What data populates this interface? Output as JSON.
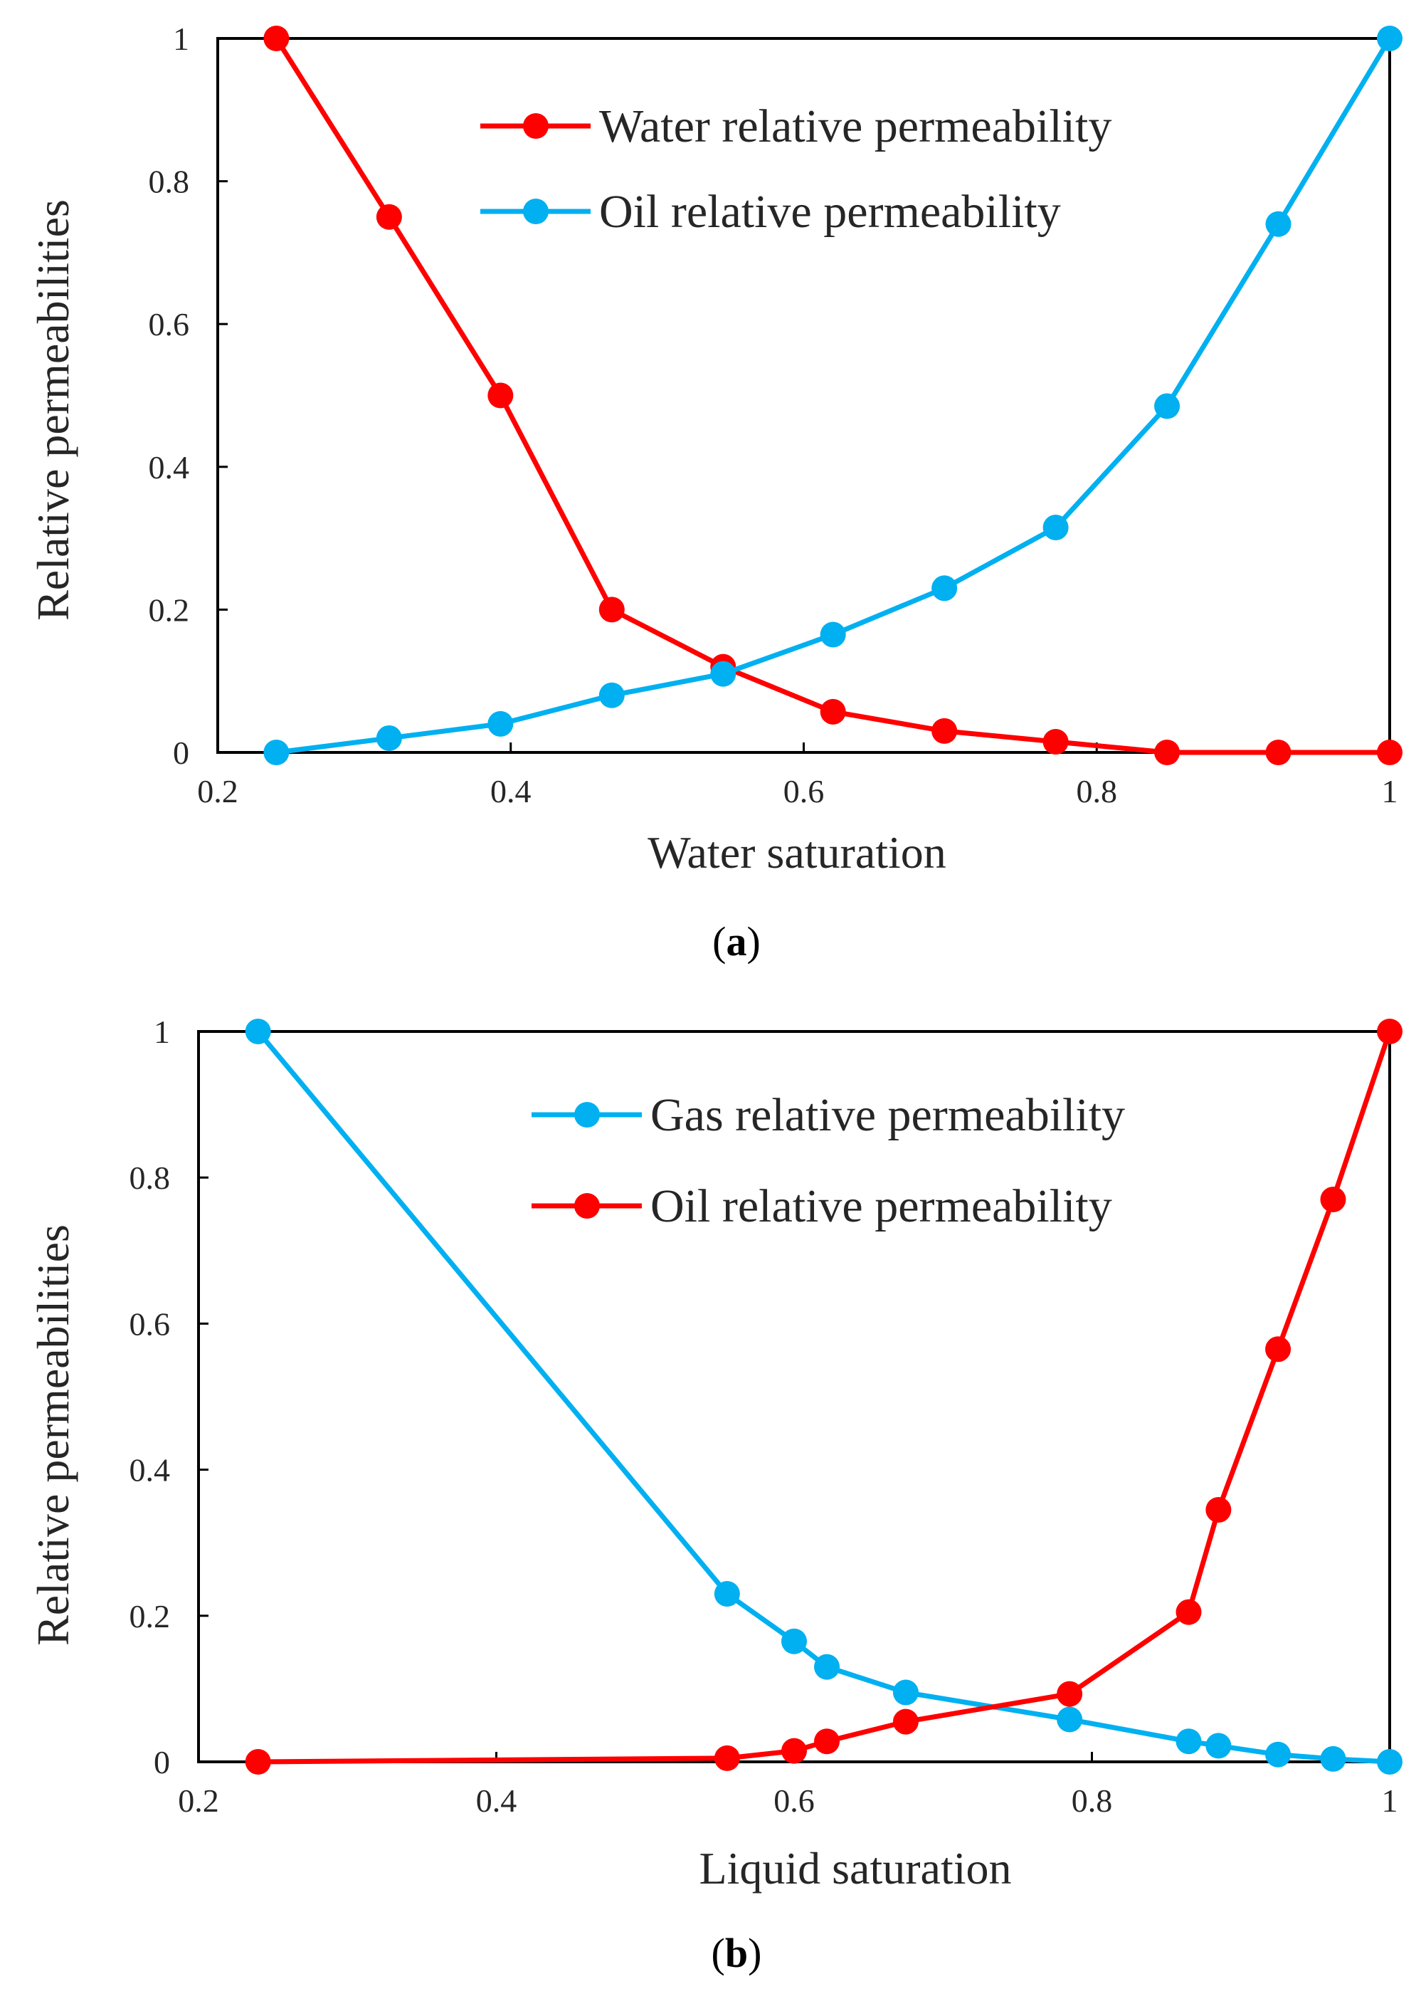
{
  "chart_data": [
    {
      "type": "line",
      "caption_open": "(",
      "caption_letter": "a",
      "caption_close": ")",
      "xlabel": "Water saturation",
      "ylabel": "Relative permeabilities",
      "xlim": [
        0.2,
        1
      ],
      "ylim": [
        0,
        1
      ],
      "xticks": [
        "0.2",
        "0.4",
        "0.6",
        "0.8",
        "1"
      ],
      "yticks": [
        "0",
        "0.2",
        "0.4",
        "0.6",
        "0.8",
        "1"
      ],
      "legend_position": "top-center",
      "x": [
        0.24,
        0.317,
        0.393,
        0.469,
        0.545,
        0.62,
        0.696,
        0.772,
        0.848,
        0.924,
        1.0
      ],
      "series": [
        {
          "name": "Water relative permeability",
          "color": "#ff0000",
          "values": [
            1,
            0.75,
            0.5,
            0.2,
            0.12,
            0.057,
            0.03,
            0.015,
            0,
            0,
            0
          ]
        },
        {
          "name": "Oil relative permeability",
          "color": "#00b0f0",
          "values": [
            0,
            0.02,
            0.04,
            0.08,
            0.11,
            0.165,
            0.23,
            0.315,
            0.485,
            0.74,
            1
          ]
        }
      ]
    },
    {
      "type": "line",
      "caption_open": "(",
      "caption_letter": "b",
      "caption_close": ")",
      "xlabel": "Liquid saturation",
      "ylabel": "Relative permeabilities",
      "xlim": [
        0.2,
        1
      ],
      "ylim": [
        0,
        1
      ],
      "xticks": [
        "0.2",
        "0.4",
        "0.6",
        "0.8",
        "1"
      ],
      "yticks": [
        "0",
        "0.2",
        "0.4",
        "0.6",
        "0.8",
        "1"
      ],
      "legend_position": "top-center",
      "x": [
        0.24,
        0.555,
        0.6,
        0.622,
        0.675,
        0.785,
        0.865,
        0.885,
        0.925,
        0.962,
        1.0
      ],
      "series": [
        {
          "name": "Gas relative permeability",
          "color": "#00b0f0",
          "values": [
            1,
            0.23,
            0.165,
            0.13,
            0.095,
            0.058,
            0.028,
            0.022,
            0.01,
            0.004,
            0
          ]
        },
        {
          "name": "Oil relative permeability",
          "color": "#ff0000",
          "values": [
            0,
            0.005,
            0.015,
            0.028,
            0.055,
            0.093,
            0.205,
            0.345,
            0.565,
            0.77,
            1
          ]
        }
      ]
    }
  ]
}
